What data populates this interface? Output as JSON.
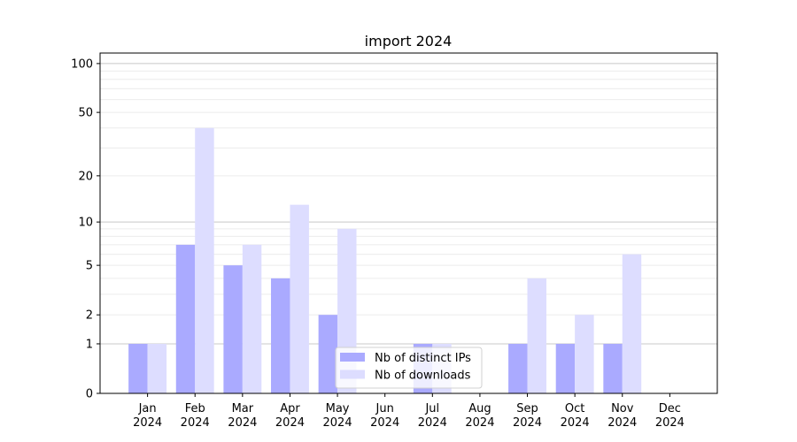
{
  "chart_data": {
    "type": "bar",
    "title": "import 2024",
    "xlabel": "",
    "ylabel": "",
    "yscale": "log(1+y)",
    "ylim": [
      0,
      116
    ],
    "yticks": [
      0,
      1,
      2,
      5,
      10,
      20,
      50,
      100
    ],
    "grid": true,
    "legend": "lower center",
    "categories": [
      "Jan\n2024",
      "Feb\n2024",
      "Mar\n2024",
      "Apr\n2024",
      "May\n2024",
      "Jun\n2024",
      "Jul\n2024",
      "Aug\n2024",
      "Sep\n2024",
      "Oct\n2024",
      "Nov\n2024",
      "Dec\n2024"
    ],
    "series": [
      {
        "name": "Nb of distinct IPs",
        "color": "#aaaaff",
        "values": [
          1,
          7,
          5,
          4,
          2,
          0,
          1,
          0,
          1,
          1,
          1,
          0
        ]
      },
      {
        "name": "Nb of downloads",
        "color": "#ddddff",
        "values": [
          1,
          40,
          7,
          13,
          9,
          0,
          1,
          0,
          4,
          2,
          6,
          0
        ]
      }
    ]
  }
}
